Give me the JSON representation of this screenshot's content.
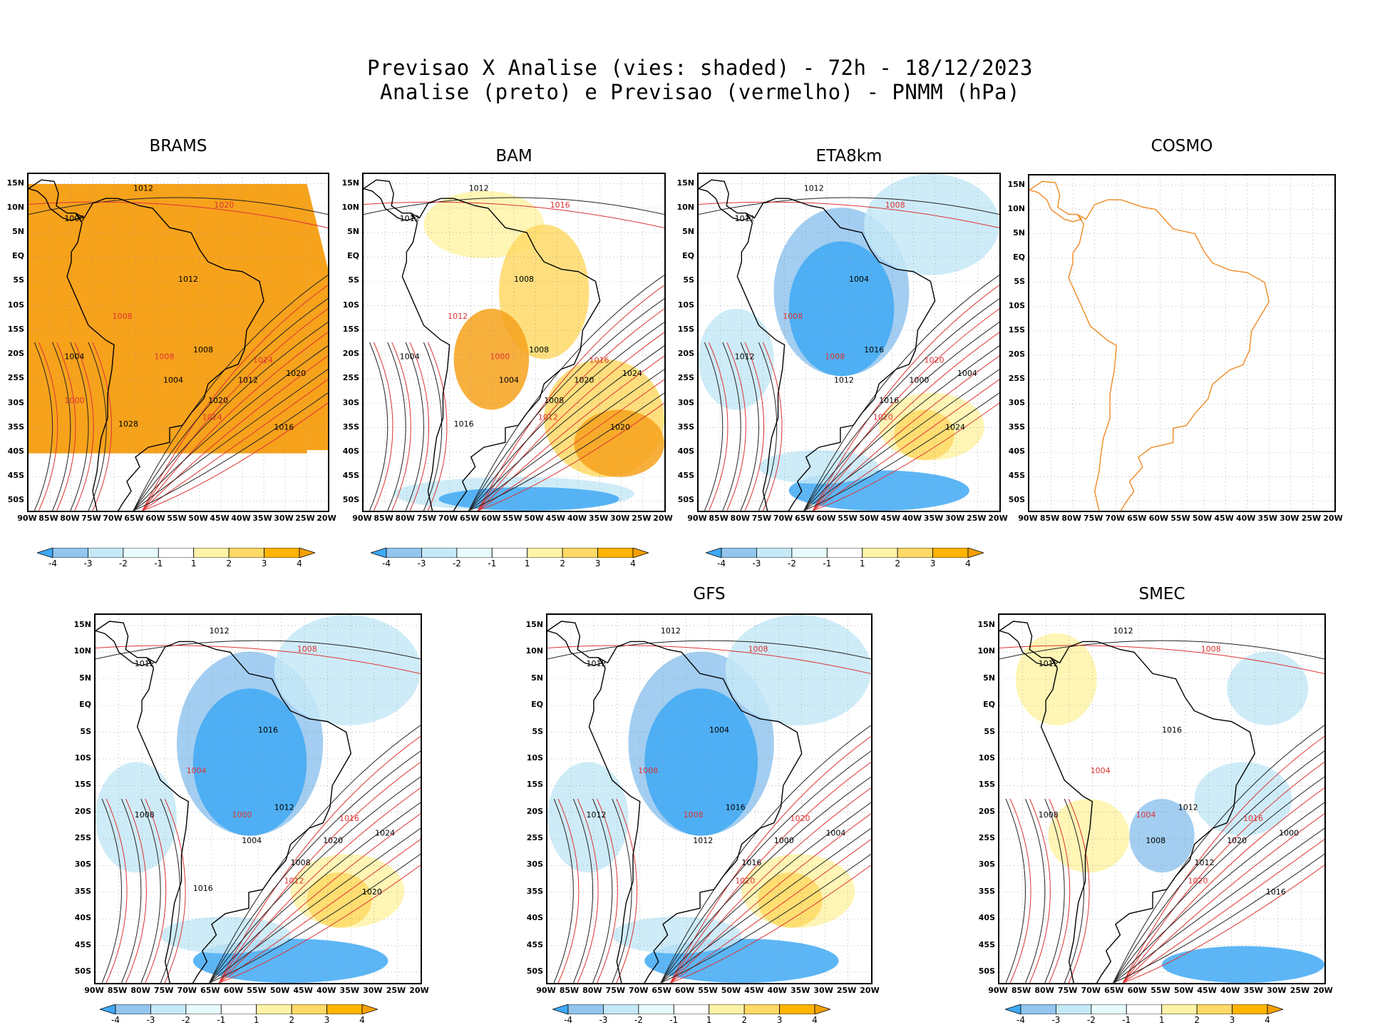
{
  "header": {
    "line1": "Previsao X Analise (vies: shaded) - 72h - 18/12/2023",
    "line2": "Analise (preto) e Previsao (vermelho) - PNMM (hPa)"
  },
  "axes": {
    "x_ticks": [
      "90W",
      "85W",
      "80W",
      "75W",
      "70W",
      "65W",
      "60W",
      "55W",
      "50W",
      "45W",
      "40W",
      "35W",
      "30W",
      "25W",
      "20W"
    ],
    "y_ticks": [
      "15N",
      "10N",
      "5N",
      "EQ",
      "5S",
      "10S",
      "15S",
      "20S",
      "25S",
      "30S",
      "35S",
      "40S",
      "45S",
      "50S"
    ]
  },
  "colorbar": {
    "labels": [
      "-4",
      "-3",
      "-2",
      "-1",
      "1",
      "2",
      "3",
      "4"
    ],
    "colors": [
      "#3fa9f5",
      "#93c5ee",
      "#c6e9f7",
      "#e8fbfd",
      "#ffffff",
      "#fff3a8",
      "#ffd966",
      "#ffb400",
      "#f5a000"
    ]
  },
  "panels": [
    {
      "id": "brams",
      "title": "BRAMS",
      "fill": "orange",
      "has_colorbar": true,
      "labels": [
        "1012",
        "1020",
        "1008",
        "1012",
        "1008",
        "1004",
        "1008",
        "1024",
        "1012",
        "1020",
        "1008",
        "1004",
        "1020",
        "1024",
        "1016",
        "1028",
        "1000"
      ]
    },
    {
      "id": "bam",
      "title": "BAM",
      "fill": "mixed-warm",
      "has_colorbar": true,
      "labels": [
        "1012",
        "1016",
        "1012",
        "1008",
        "1012",
        "1004",
        "1008",
        "1016",
        "1020",
        "1024",
        "1000",
        "1004",
        "1008",
        "1012",
        "1020",
        "1016"
      ]
    },
    {
      "id": "eta8km",
      "title": "ETA8km",
      "fill": "mixed-cold",
      "has_colorbar": true,
      "labels": [
        "1012",
        "1008",
        "1012",
        "1004",
        "1008",
        "1012",
        "1016",
        "1020",
        "1000",
        "1004",
        "1008",
        "1012",
        "1016",
        "1020",
        "1024"
      ]
    },
    {
      "id": "cosmo",
      "title": "COSMO",
      "fill": "none",
      "has_colorbar": false,
      "labels": []
    },
    {
      "id": "p5",
      "title": "",
      "fill": "mixed-cold",
      "has_colorbar": true,
      "labels": [
        "1012",
        "1008",
        "1012",
        "1016",
        "1004",
        "1008",
        "1012",
        "1016",
        "1020",
        "1024",
        "1000",
        "1004",
        "1008",
        "1012",
        "1020",
        "1016"
      ]
    },
    {
      "id": "gfs",
      "title": "GFS",
      "fill": "mixed-cold",
      "has_colorbar": true,
      "labels": [
        "1012",
        "1008",
        "1012",
        "1004",
        "1008",
        "1012",
        "1016",
        "1020",
        "1000",
        "1004",
        "1008",
        "1012",
        "1016",
        "1020"
      ]
    },
    {
      "id": "smec",
      "title": "SMEC",
      "fill": "mixed-light",
      "has_colorbar": true,
      "labels": [
        "1012",
        "1008",
        "1012",
        "1016",
        "1004",
        "1008",
        "1012",
        "1016",
        "1020",
        "1000",
        "1004",
        "1008",
        "1012",
        "1020",
        "1016"
      ]
    }
  ],
  "chart_data": {
    "type": "heatmap",
    "title": "Previsao X Analise (vies: shaded) - 72h - 18/12/2023",
    "subtitle": "Analise (preto) e Previsao (vermelho) - PNMM (hPa)",
    "xlabel": "",
    "ylabel": "",
    "x_range": [
      -90,
      -20
    ],
    "y_range": [
      -52,
      17
    ],
    "shading_levels": [
      -4,
      -3,
      -2,
      -1,
      1,
      2,
      3,
      4
    ],
    "models": [
      "BRAMS",
      "BAM",
      "ETA8km",
      "COSMO",
      "",
      "GFS",
      "SMEC"
    ]
  }
}
